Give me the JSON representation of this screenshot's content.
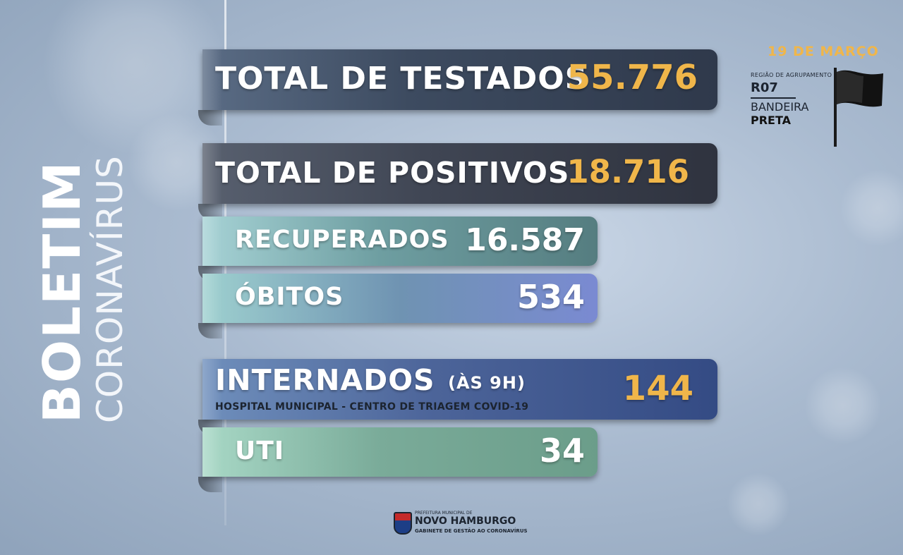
{
  "side_title": {
    "bold": "BOLETIM",
    "light": "CORONAVÍRUS"
  },
  "date": "19 DE MARÇO",
  "region": {
    "group_label": "REGIÃO DE AGRUPAMENTO",
    "code": "R07",
    "flag_label": "BANDEIRA",
    "flag_color": "PRETA"
  },
  "stats": {
    "testados": {
      "label": "TOTAL DE TESTADOS",
      "value": "55.776"
    },
    "positivos": {
      "label": "TOTAL DE POSITIVOS",
      "value": "18.716"
    },
    "recuperados": {
      "label": "RECUPERADOS",
      "value": "16.587"
    },
    "obitos": {
      "label": "ÓBITOS",
      "value": "534"
    },
    "internados": {
      "label": "INTERNADOS",
      "note": "(ÀS 9H)",
      "sub": "HOSPITAL MUNICIPAL - CENTRO DE TRIAGEM COVID-19",
      "value": "144"
    },
    "uti": {
      "label": "UTI",
      "value": "34"
    }
  },
  "logo": {
    "line1": "PREFEITURA MUNICIPAL DE",
    "line2": "NOVO HAMBURGO",
    "line3": "GABINETE DE GESTÃO AO CORONAVÍRUS"
  },
  "colors": {
    "accent_orange": "#f0b64a",
    "text_white": "#ffffff",
    "dark_text": "#1c2430"
  },
  "icons": {
    "flag": "black-flag-icon",
    "virus": "virus-icon"
  }
}
